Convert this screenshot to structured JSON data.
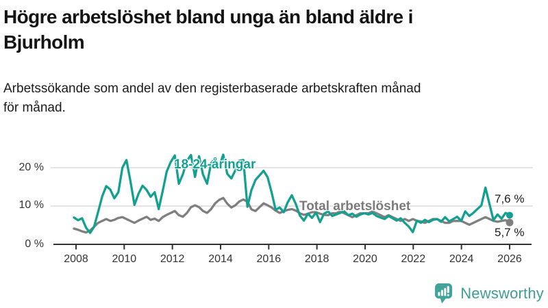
{
  "header": {
    "title_line1": "Högre arbetslöshet bland unga än bland äldre i",
    "title_line2": "Bjurholm",
    "subtitle_line1": "Arbetssökande som andel av den registerbaserade arbetskraften månad",
    "subtitle_line2": "för månad."
  },
  "colors": {
    "accent_teal": "#14a091",
    "total_gray": "#7f7f7f",
    "label_gray": "#7a7a7a",
    "axis": "#333333",
    "grid": "#dbdbdb",
    "brand_teal": "#43a29a",
    "brand_text_teal": "#3f9d95"
  },
  "chart_data": {
    "type": "line",
    "title": "Högre arbetslöshet bland unga än bland äldre i Bjurholm",
    "subtitle": "Arbetssökande som andel av den registerbaserade arbetskraften månad för månad.",
    "unit": "%",
    "x_start_year": 2008,
    "x_end_year": 2026,
    "points_per_year": 6,
    "grid": "horizontal-only",
    "ylim": [
      0,
      25
    ],
    "y_ticks": [
      {
        "value": 0,
        "label": "0 %"
      },
      {
        "value": 10,
        "label": "10 %"
      },
      {
        "value": 20,
        "label": "20 %"
      }
    ],
    "x_ticks": [
      "2008",
      "2010",
      "2012",
      "2014",
      "2016",
      "2018",
      "2020",
      "2022",
      "2024",
      "2026"
    ],
    "series": [
      {
        "name": "18-24-åringar",
        "color": "#14a091",
        "end_label": "7,6 %",
        "end_value": 7.6,
        "values": [
          7.0,
          6.3,
          6.8,
          4.3,
          3.0,
          4.6,
          8.5,
          12.5,
          15.2,
          14.3,
          12.0,
          13.6,
          20.0,
          22.0,
          16.5,
          10.3,
          13.2,
          15.3,
          14.2,
          12.4,
          13.6,
          9.2,
          14.0,
          19.0,
          21.5,
          23.2,
          15.8,
          18.3,
          21.8,
          23.3,
          17.6,
          23.0,
          18.2,
          15.8,
          21.2,
          22.4,
          20.3,
          23.4,
          18.4,
          17.2,
          19.3,
          21.8,
          22.0,
          9.8,
          14.2,
          16.8,
          18.0,
          19.2,
          17.5,
          13.5,
          9.0,
          9.6,
          8.4,
          11.0,
          12.8,
          10.5,
          7.5,
          6.2,
          8.0,
          6.9,
          8.3,
          5.8,
          8.0,
          8.6,
          7.4,
          7.8,
          8.2,
          8.6,
          7.6,
          8.0,
          7.2,
          7.8,
          8.1,
          7.8,
          8.2,
          7.4,
          7.0,
          6.6,
          7.4,
          6.8,
          6.2,
          6.8,
          5.6,
          4.6,
          3.2,
          6.2,
          5.6,
          6.4,
          5.8,
          6.4,
          6.6,
          5.9,
          7.1,
          6.0,
          6.6,
          7.2,
          6.1,
          8.6,
          7.4,
          8.2,
          9.2,
          10.2,
          14.8,
          10.5,
          6.3,
          7.8,
          6.7,
          8.2,
          7.6
        ]
      },
      {
        "name": "Total arbetslöshet",
        "color": "#7f7f7f",
        "end_label": "5,7 %",
        "end_value": 5.7,
        "values": [
          4.1,
          3.8,
          3.4,
          3.1,
          3.6,
          4.6,
          5.6,
          6.1,
          6.6,
          6.1,
          6.4,
          6.9,
          7.1,
          6.6,
          6.1,
          5.6,
          6.2,
          6.7,
          7.2,
          6.4,
          6.7,
          6.1,
          7.1,
          7.7,
          8.2,
          8.7,
          7.6,
          7.2,
          8.2,
          9.7,
          10.2,
          9.7,
          8.7,
          8.2,
          9.2,
          10.7,
          11.6,
          12.1,
          10.6,
          9.6,
          10.2,
          11.2,
          11.7,
          11.1,
          9.1,
          8.7,
          9.7,
          10.7,
          10.2,
          9.6,
          8.8,
          8.2,
          8.6,
          9.0,
          9.2,
          8.8,
          8.1,
          7.7,
          8.0,
          8.4,
          8.4,
          8.0,
          7.7,
          7.6,
          8.1,
          8.1,
          8.6,
          8.1,
          7.6,
          7.1,
          7.6,
          8.1,
          8.1,
          8.1,
          8.6,
          8.1,
          7.6,
          7.1,
          7.6,
          7.1,
          6.6,
          6.1,
          6.6,
          6.1,
          6.6,
          6.1,
          6.0,
          5.6,
          6.1,
          6.6,
          6.6,
          6.1,
          5.6,
          5.6,
          6.1,
          6.1,
          6.1,
          5.6,
          5.1,
          5.6,
          6.1,
          6.6,
          7.1,
          6.6,
          6.1,
          5.9,
          6.1,
          6.3,
          5.7
        ]
      }
    ],
    "legend_position": "inline-labels"
  },
  "footer": {
    "brand": "Newsworthy"
  }
}
